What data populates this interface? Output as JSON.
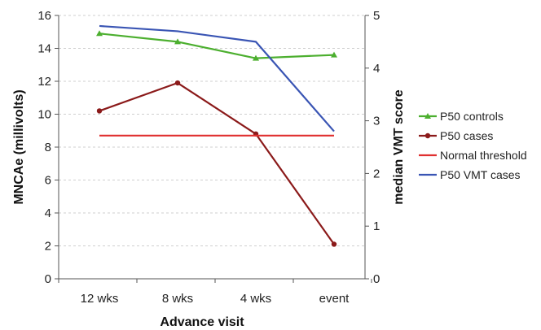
{
  "chart_data": {
    "type": "line",
    "categories": [
      "12 wks",
      "8 wks",
      "4 wks",
      "event"
    ],
    "xlabel": "Advance visit",
    "ylabel_left": "MNCAe (millivolts)",
    "ylabel_right": "median VMT score",
    "ylim_left": [
      0,
      16
    ],
    "ylim_right": [
      0,
      5
    ],
    "yticks_left": [
      "0",
      "2",
      "4",
      "6",
      "8",
      "10",
      "12",
      "14",
      "16"
    ],
    "yticks_right": [
      "0",
      "1",
      "2",
      "3",
      "4",
      "5"
    ],
    "grid": true,
    "legend_position": "right",
    "series": [
      {
        "name": "P50 controls",
        "axis": "left",
        "values": [
          14.9,
          14.4,
          13.4,
          13.6
        ],
        "color": "#4caf2f",
        "marker": "triangle"
      },
      {
        "name": "P50 cases",
        "axis": "left",
        "values": [
          10.2,
          11.9,
          8.8,
          2.1
        ],
        "color": "#8b1a1a",
        "marker": "circle"
      },
      {
        "name": "Normal threshold",
        "axis": "left",
        "values": [
          8.7,
          8.7,
          8.7,
          8.7
        ],
        "color": "#e03030",
        "marker": "none"
      },
      {
        "name": "P50 VMT cases",
        "axis": "right",
        "values": [
          4.8,
          4.7,
          4.5,
          2.8
        ],
        "color": "#3a55b4",
        "marker": "none"
      }
    ]
  }
}
